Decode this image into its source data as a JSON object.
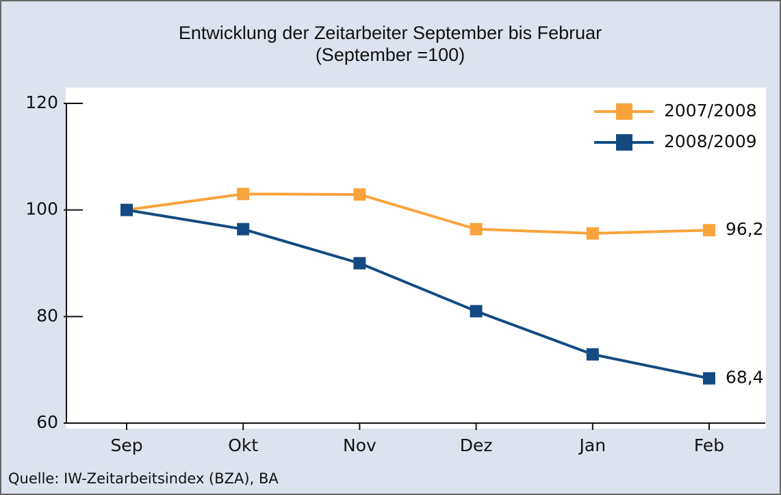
{
  "chart_data": {
    "type": "line",
    "title": "Entwicklung der Zeitarbeiter September bis Februar",
    "subtitle": "(September =100)",
    "source": "Quelle: IW-Zeitarbeitsindex (BZA), BA",
    "categories": [
      "Sep",
      "Okt",
      "Nov",
      "Dez",
      "Jan",
      "Feb"
    ],
    "series": [
      {
        "name": "2007/2008",
        "color": "#f9a33c",
        "values": [
          100,
          103,
          102.9,
          96.4,
          95.6,
          96.2
        ],
        "value_labels": [
          null,
          null,
          null,
          null,
          null,
          "96,2"
        ]
      },
      {
        "name": "2008/2009",
        "color": "#144a82",
        "values": [
          100,
          96.4,
          90,
          81,
          72.9,
          68.4
        ],
        "value_labels": [
          null,
          null,
          null,
          null,
          null,
          "68,4"
        ]
      }
    ],
    "ylim": [
      60,
      120
    ],
    "yticks": [
      60,
      80,
      100,
      120
    ],
    "legend": "upper right"
  }
}
